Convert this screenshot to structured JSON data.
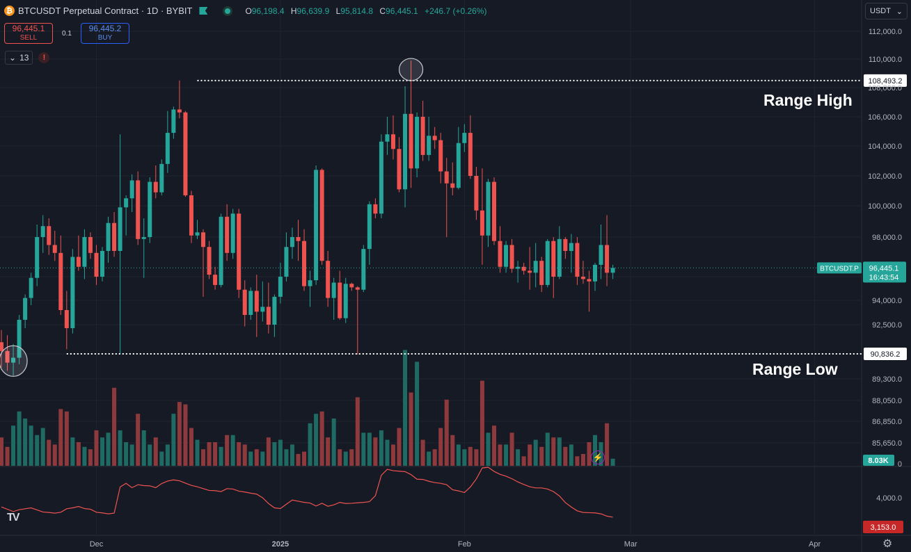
{
  "header": {
    "logo_glyph": "₿",
    "title": "BTCUSDT Perpetual Contract · 1D · BYBIT",
    "ohlc": {
      "o_label": "O",
      "o": "96,198.4",
      "h_label": "H",
      "h": "96,639.9",
      "l_label": "L",
      "l": "95,814.8",
      "c_label": "C",
      "c": "96,445.1",
      "change": "+246.7 (+0.26%)"
    }
  },
  "trade": {
    "sell_price": "96,445.1",
    "sell_label": "SELL",
    "spread": "0.1",
    "buy_price": "96,445.2",
    "buy_label": "BUY"
  },
  "indicators": {
    "count": "13",
    "toggle_icon": "chevron-down-icon",
    "alert_icon": "alert-icon"
  },
  "currency": {
    "label": "USDT",
    "icon": "chevron-down-icon"
  },
  "annotations": {
    "range_high": "Range High",
    "range_low": "Range Low"
  },
  "branding": {
    "logo": "TV"
  },
  "colors": {
    "up": "#26a69a",
    "down": "#ef5350",
    "up_vol": "#1f6b64",
    "down_vol": "#8e3a3d",
    "bg": "#161a25",
    "grid": "#1f2430",
    "line": "#ef5350"
  },
  "chart_data": {
    "type": "candlestick",
    "symbol": "BTCUSDT.P",
    "interval": "1D",
    "y_ticks": [
      85650,
      86850,
      88050,
      89300,
      90836.2,
      92500,
      94000,
      96000,
      98000,
      100000,
      102000,
      104000,
      106000,
      108000,
      110000,
      112000
    ],
    "y_tick_labels": [
      "85,650.0",
      "86,850.0",
      "88,050.0",
      "89,300.0",
      "90,836.2",
      "92,500.0",
      "94,000.0",
      "96,000.0",
      "98,000.0",
      "100,000.0",
      "102,000.0",
      "104,000.0",
      "106,000.0",
      "108,000.0",
      "110,000.0",
      "112,000.0"
    ],
    "x_labels": [
      {
        "day": 16,
        "label": "Dec"
      },
      {
        "day": 47,
        "label": "2025"
      },
      {
        "day": 78,
        "label": "Feb"
      },
      {
        "day": 106,
        "label": "Mar"
      },
      {
        "day": 137,
        "label": "Apr"
      }
    ],
    "levels": [
      {
        "name": "range_high",
        "value": 108493.2,
        "label": "108,493.2",
        "start_day": 33
      },
      {
        "name": "range_low",
        "value": 90836.2,
        "label": "90,836.2",
        "start_day": 11
      }
    ],
    "last_price": {
      "value": 96445.1,
      "label": "96,445.1",
      "countdown": "16:43:54",
      "symbol": "BTCUSDT.P"
    },
    "volume_last_label": "8.03K",
    "volume_tick_label": "0",
    "osc_tick": {
      "value": 4000,
      "label": "4,000.0"
    },
    "osc_last": {
      "value": 3153,
      "label": "3,153.0"
    },
    "candles": [
      [
        91500,
        92200,
        90000,
        91000,
        1.2
      ],
      [
        91000,
        91900,
        89800,
        90300,
        0.8
      ],
      [
        90300,
        91400,
        89500,
        90600,
        1.7
      ],
      [
        90600,
        93100,
        90200,
        92800,
        2.3
      ],
      [
        92800,
        94500,
        92300,
        94200,
        2.0
      ],
      [
        94200,
        96200,
        93700,
        95900,
        1.7
      ],
      [
        95900,
        98800,
        95200,
        98000,
        1.3
      ],
      [
        98000,
        99400,
        97200,
        98700,
        1.6
      ],
      [
        98700,
        99200,
        97100,
        97600,
        1.1
      ],
      [
        97600,
        98400,
        96800,
        97200,
        0.9
      ],
      [
        97200,
        98100,
        93100,
        93400,
        2.4
      ],
      [
        93400,
        94800,
        91100,
        92300,
        2.3
      ],
      [
        92300,
        97400,
        92000,
        97000,
        1.2
      ],
      [
        97000,
        98100,
        96300,
        96500,
        1.0
      ],
      [
        96500,
        98500,
        95800,
        98000,
        0.8
      ],
      [
        98000,
        98300,
        96900,
        97200,
        0.7
      ],
      [
        97200,
        97600,
        95300,
        96000,
        1.5
      ],
      [
        96000,
        97500,
        95600,
        97300,
        1.2
      ],
      [
        97300,
        99300,
        96700,
        98900,
        1.4
      ],
      [
        98900,
        99600,
        97000,
        97300,
        3.3
      ],
      [
        97300,
        104800,
        90800,
        99900,
        1.5
      ],
      [
        99900,
        100700,
        98100,
        100500,
        1.0
      ],
      [
        100500,
        102100,
        99600,
        101700,
        0.9
      ],
      [
        101700,
        102300,
        97600,
        97900,
        2.2
      ],
      [
        97900,
        99200,
        95900,
        98000,
        1.5
      ],
      [
        98000,
        101900,
        97700,
        101600,
        0.9
      ],
      [
        101600,
        102700,
        100500,
        100900,
        1.2
      ],
      [
        100900,
        103100,
        100700,
        102800,
        0.6
      ],
      [
        102800,
        106400,
        102200,
        104900,
        0.9
      ],
      [
        104900,
        106700,
        104500,
        106500,
        2.2
      ],
      [
        106500,
        108500,
        105900,
        106300,
        2.7
      ],
      [
        106300,
        106400,
        100600,
        100700,
        2.6
      ],
      [
        100700,
        101000,
        97700,
        98100,
        1.6
      ],
      [
        98100,
        99100,
        97900,
        98300,
        1.1
      ],
      [
        98300,
        98500,
        94300,
        97500,
        0.7
      ],
      [
        97500,
        97800,
        95800,
        96100,
        1.0
      ],
      [
        96100,
        96500,
        94900,
        95300,
        1.0
      ],
      [
        95300,
        99500,
        95100,
        99300,
        0.8
      ],
      [
        99300,
        100100,
        96800,
        97200,
        1.3
      ],
      [
        97200,
        99800,
        96900,
        99500,
        1.3
      ],
      [
        99500,
        99800,
        94200,
        94900,
        1.0
      ],
      [
        94900,
        95700,
        92400,
        93100,
        0.9
      ],
      [
        93100,
        95100,
        92800,
        94800,
        0.6
      ],
      [
        94800,
        96100,
        91800,
        93300,
        0.7
      ],
      [
        93300,
        95600,
        92700,
        93600,
        0.6
      ],
      [
        93600,
        95500,
        92000,
        92500,
        1.2
      ],
      [
        92500,
        94500,
        91800,
        94300,
        1.0
      ],
      [
        94300,
        96700,
        93800,
        96000,
        1.1
      ],
      [
        96000,
        98300,
        95600,
        97500,
        0.7
      ],
      [
        97500,
        98600,
        96900,
        98000,
        0.9
      ],
      [
        98000,
        99100,
        96800,
        97800,
        0.5
      ],
      [
        97800,
        98500,
        94800,
        95200,
        0.6
      ],
      [
        95200,
        96300,
        93600,
        95700,
        1.8
      ],
      [
        95700,
        102700,
        95300,
        102400,
        2.2
      ],
      [
        102400,
        102500,
        96600,
        96800,
        2.3
      ],
      [
        96800,
        97300,
        93600,
        94200,
        1.2
      ],
      [
        94200,
        95900,
        92800,
        95500,
        2.0
      ],
      [
        95500,
        96300,
        92800,
        92900,
        0.7
      ],
      [
        92900,
        95900,
        92600,
        95400,
        0.6
      ],
      [
        95400,
        95500,
        94800,
        95100,
        0.7
      ],
      [
        95100,
        95200,
        90800,
        94900,
        2.9
      ],
      [
        94900,
        97600,
        94700,
        97400,
        1.4
      ],
      [
        97400,
        100300,
        96600,
        100100,
        1.4
      ],
      [
        100100,
        100500,
        99200,
        99500,
        1.2
      ],
      [
        99500,
        104800,
        99200,
        104300,
        1.5
      ],
      [
        104300,
        106000,
        103400,
        104800,
        1.1
      ],
      [
        104800,
        106100,
        103100,
        103800,
        0.9
      ],
      [
        103800,
        104600,
        100900,
        101100,
        1.6
      ],
      [
        101100,
        108100,
        99900,
        106200,
        4.9
      ],
      [
        106200,
        109900,
        101200,
        102500,
        3.1
      ],
      [
        102500,
        106300,
        101900,
        106000,
        4.4
      ],
      [
        106000,
        107100,
        103000,
        103400,
        1.1
      ],
      [
        103400,
        106000,
        103000,
        104700,
        0.6
      ],
      [
        104700,
        105300,
        103800,
        104400,
        0.7
      ],
      [
        104400,
        104900,
        101500,
        102300,
        1.6
      ],
      [
        102300,
        103200,
        98000,
        101500,
        2.8
      ],
      [
        101500,
        102900,
        100700,
        101200,
        1.3
      ],
      [
        101200,
        105300,
        101100,
        104200,
        0.9
      ],
      [
        104200,
        105500,
        103600,
        104900,
        0.7
      ],
      [
        104900,
        106100,
        101800,
        102000,
        0.8
      ],
      [
        102000,
        102600,
        99100,
        99700,
        0.7
      ],
      [
        99700,
        102500,
        96600,
        98100,
        3.6
      ],
      [
        98100,
        101800,
        97500,
        101600,
        1.4
      ],
      [
        101600,
        101900,
        97600,
        97800,
        1.7
      ],
      [
        97800,
        98700,
        96200,
        96500,
        0.9
      ],
      [
        96500,
        97800,
        96200,
        97600,
        0.9
      ],
      [
        97600,
        97900,
        96200,
        96400,
        1.4
      ],
      [
        96400,
        96800,
        95500,
        96500,
        0.7
      ],
      [
        96500,
        96700,
        96100,
        96300,
        0.4
      ],
      [
        96300,
        97500,
        94900,
        96200,
        0.9
      ],
      [
        96200,
        97700,
        95100,
        96800,
        1.1
      ],
      [
        96800,
        97000,
        94700,
        95300,
        0.8
      ],
      [
        95300,
        97900,
        95100,
        97800,
        1.4
      ],
      [
        97800,
        98000,
        94200,
        96000,
        1.2
      ],
      [
        96000,
        98700,
        95800,
        97900,
        1.2
      ],
      [
        97900,
        98000,
        96900,
        97300,
        0.8
      ],
      [
        97300,
        98200,
        96200,
        97700,
        0.9
      ],
      [
        97700,
        98000,
        95300,
        96000,
        0.4
      ],
      [
        96000,
        96800,
        95400,
        95800,
        0.5
      ],
      [
        95800,
        96300,
        93300,
        95600,
        1.0
      ],
      [
        95600,
        96700,
        94800,
        96600,
        1.3
      ],
      [
        96600,
        98800,
        95800,
        97600,
        1.0
      ],
      [
        97600,
        99400,
        95200,
        96200,
        1.8
      ],
      [
        96200,
        96600,
        95800,
        96445.1,
        0.3
      ]
    ],
    "osc_values": [
      3600,
      3500,
      3400,
      3480,
      3520,
      3560,
      3470,
      3380,
      3360,
      3330,
      3370,
      3520,
      3560,
      3620,
      3530,
      3500,
      3370,
      3340,
      3300,
      3330,
      4470,
      4630,
      4440,
      4570,
      4530,
      4520,
      4440,
      4620,
      4730,
      4780,
      4740,
      4640,
      4540,
      4480,
      4400,
      4320,
      4310,
      4270,
      4400,
      4380,
      4290,
      4250,
      4200,
      4160,
      4000,
      3750,
      3560,
      3530,
      3720,
      3900,
      3850,
      3800,
      3770,
      3640,
      3760,
      3630,
      3690,
      3800,
      3750,
      3760,
      3780,
      3800,
      3830,
      4090,
      4980,
      5240,
      5180,
      5160,
      5140,
      5010,
      4810,
      4800,
      4720,
      4660,
      4630,
      4570,
      4350,
      4300,
      4230,
      4470,
      4820,
      5300,
      5330,
      5150,
      5020,
      4940,
      4830,
      4690,
      4580,
      4480,
      4430,
      4430,
      4380,
      4270,
      4080,
      3790,
      3600,
      3430,
      3360,
      3350,
      3340,
      3300,
      3200,
      3153
    ]
  }
}
